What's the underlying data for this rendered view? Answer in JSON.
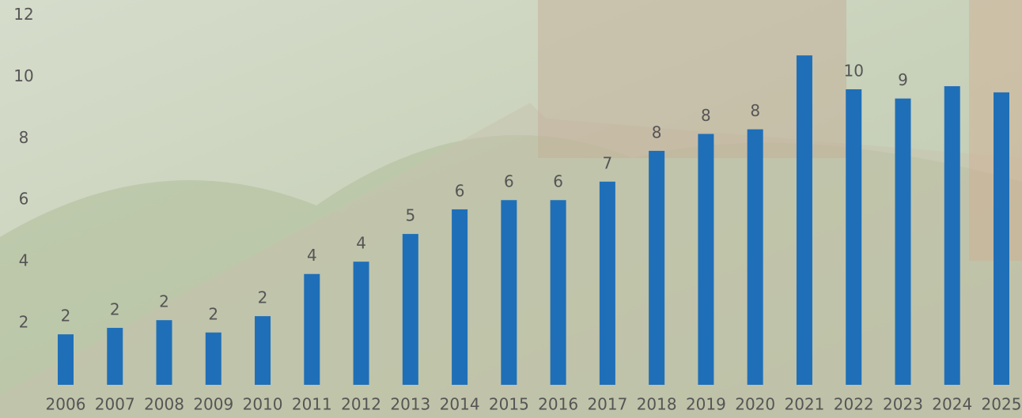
{
  "chart_data": {
    "type": "bar",
    "categories": [
      "2006",
      "2007",
      "2008",
      "2009",
      "2010",
      "2011",
      "2012",
      "2013",
      "2014",
      "2015",
      "2016",
      "2017",
      "2018",
      "2019",
      "2020",
      "2021",
      "2022",
      "2023",
      "2024",
      "2025"
    ],
    "values": [
      1.64,
      1.85,
      2.1,
      1.7,
      2.23,
      3.6,
      4.0,
      4.9,
      5.7,
      6.0,
      6.0,
      6.6,
      7.6,
      8.15,
      8.3,
      10.7,
      9.6,
      9.3,
      9.7,
      9.5
    ],
    "value_labels": [
      "2",
      "2",
      "2",
      "2",
      "2",
      "4",
      "4",
      "5",
      "6",
      "6",
      "6",
      "7",
      "8",
      "8",
      "8",
      null,
      "10",
      "9",
      null,
      null
    ],
    "color": "#1f6fb8",
    "ylim": [
      0,
      12.5
    ],
    "yticks": [
      2,
      4,
      6,
      8,
      10,
      12
    ],
    "grid": false
  }
}
